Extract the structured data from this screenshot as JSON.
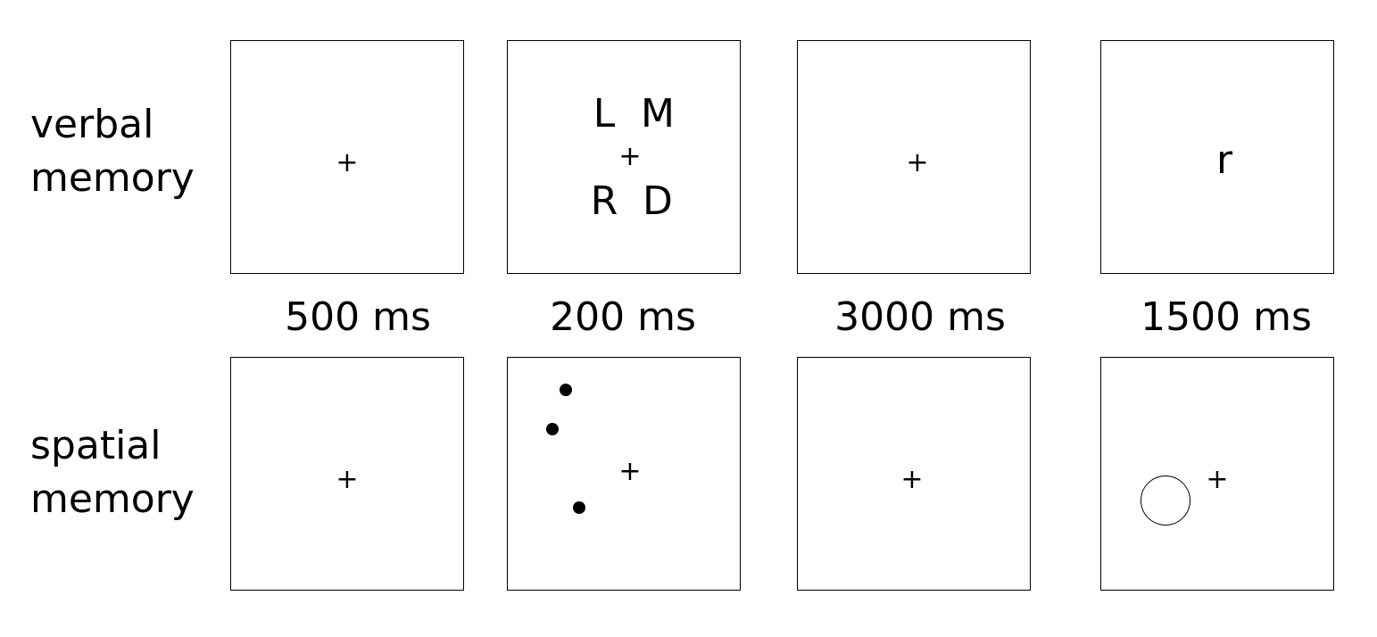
{
  "rows": {
    "verbal": {
      "label_line1": "verbal",
      "label_line2": "memory"
    },
    "spatial": {
      "label_line1": "spatial",
      "label_line2": "memory"
    }
  },
  "fixation_symbol": "+",
  "verbal_stimuli": {
    "top_left": "L",
    "top_right": "M",
    "bottom_left": "R",
    "bottom_right": "D"
  },
  "verbal_probe": "r",
  "durations": [
    "500 ms",
    "200 ms",
    "3000 ms",
    "1500 ms"
  ]
}
